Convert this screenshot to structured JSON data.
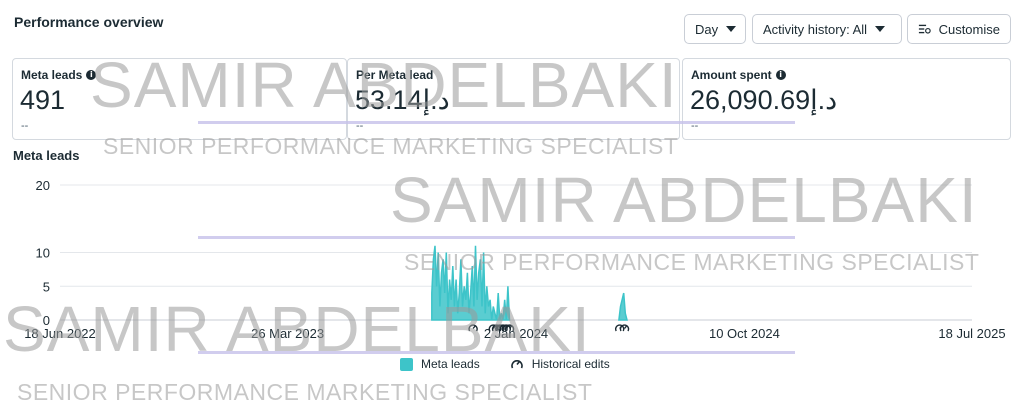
{
  "header": {
    "title": "Performance overview"
  },
  "controls": {
    "day_label": "Day",
    "activity_label": "Activity history: All",
    "customise_label": "Customise"
  },
  "metrics": [
    {
      "label": "Meta leads",
      "value": "491",
      "delta": "--",
      "has_info": true
    },
    {
      "label": "Per Meta lead",
      "value": "53.14د.إ",
      "delta": "--",
      "has_info": false
    },
    {
      "label": "Amount spent",
      "value": "26,090.69د.إ",
      "delta": "--",
      "has_info": true
    }
  ],
  "watermark": {
    "name": "SAMIR ABDELBAKI",
    "role": "SENIOR PERFORMANCE MARKETING SPECIALIST"
  },
  "chart_data": {
    "type": "area",
    "title": "Meta leads",
    "y_ticks": [
      "0",
      "5",
      "10",
      "20"
    ],
    "y_tick_values": [
      0,
      5,
      10,
      20
    ],
    "ylim": [
      0,
      20
    ],
    "x_ticks": [
      "18 Jun 2022",
      "26 Mar 2023",
      "2 Jan 2024",
      "10 Oct 2024",
      "18 Jul 2025"
    ],
    "x_tick_dates": [
      "2022-06-18",
      "2023-03-26",
      "2024-01-02",
      "2024-10-10",
      "2025-07-18"
    ],
    "xlim": [
      "2022-06-18",
      "2025-07-18"
    ],
    "grid": true,
    "legend_position": "bottom",
    "series": [
      {
        "name": "Meta leads",
        "color": "#3dc4c9",
        "points": [
          [
            "2023-09-20",
            4
          ],
          [
            "2023-09-22",
            9
          ],
          [
            "2023-09-24",
            11
          ],
          [
            "2023-09-26",
            5
          ],
          [
            "2023-09-28",
            10
          ],
          [
            "2023-09-30",
            2
          ],
          [
            "2023-10-02",
            7
          ],
          [
            "2023-10-04",
            9
          ],
          [
            "2023-10-06",
            4
          ],
          [
            "2023-10-08",
            10
          ],
          [
            "2023-10-10",
            1
          ],
          [
            "2023-10-12",
            6
          ],
          [
            "2023-10-14",
            3
          ],
          [
            "2023-10-16",
            8
          ],
          [
            "2023-10-18",
            2
          ],
          [
            "2023-10-20",
            6
          ],
          [
            "2023-10-22",
            1
          ],
          [
            "2023-10-24",
            4
          ],
          [
            "2023-10-26",
            9
          ],
          [
            "2023-10-28",
            2
          ],
          [
            "2023-10-30",
            5
          ],
          [
            "2023-11-01",
            3
          ],
          [
            "2023-11-03",
            7
          ],
          [
            "2023-11-05",
            1
          ],
          [
            "2023-11-07",
            4
          ],
          [
            "2023-11-09",
            8
          ],
          [
            "2023-11-11",
            2
          ],
          [
            "2023-11-13",
            11
          ],
          [
            "2023-11-15",
            3
          ],
          [
            "2023-11-17",
            7
          ],
          [
            "2023-11-19",
            9
          ],
          [
            "2023-11-21",
            2
          ],
          [
            "2023-11-23",
            10
          ],
          [
            "2023-11-25",
            1
          ],
          [
            "2023-11-27",
            5
          ],
          [
            "2023-11-29",
            2
          ],
          [
            "2023-12-01",
            3
          ],
          [
            "2023-12-03",
            0
          ],
          [
            "2023-12-05",
            2
          ],
          [
            "2023-12-07",
            1
          ],
          [
            "2023-12-09",
            0
          ],
          [
            "2023-12-11",
            4
          ],
          [
            "2023-12-13",
            0
          ],
          [
            "2023-12-15",
            1
          ],
          [
            "2023-12-17",
            0
          ],
          [
            "2023-12-19",
            3
          ],
          [
            "2023-12-21",
            0
          ],
          [
            "2023-12-23",
            5
          ],
          [
            "2023-12-25",
            0
          ],
          [
            "2024-05-08",
            0
          ],
          [
            "2024-05-10",
            2
          ],
          [
            "2024-05-12",
            3
          ],
          [
            "2024-05-14",
            4
          ],
          [
            "2024-05-16",
            1
          ],
          [
            "2024-05-18",
            0
          ]
        ]
      }
    ],
    "historical_edits": {
      "name": "Historical edits",
      "dates": [
        "2023-11-10",
        "2023-12-05",
        "2023-12-09",
        "2023-12-13",
        "2023-12-17",
        "2023-12-21",
        "2023-12-25",
        "2024-05-09",
        "2024-05-15"
      ]
    }
  }
}
